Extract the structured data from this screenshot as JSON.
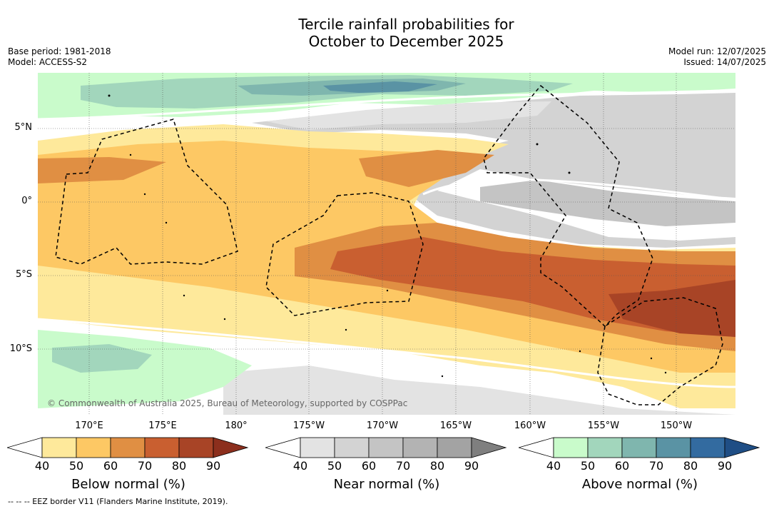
{
  "title_line1": "Tercile rainfall probabilities for",
  "title_line2": "October to December 2025",
  "meta_left": {
    "base_period": "Base period: 1981-2018",
    "model": "Model: ACCESS-S2"
  },
  "meta_right": {
    "model_run": "Model run: 12/07/2025",
    "issued": "Issued: 14/07/2025"
  },
  "map": {
    "lat_labels": [
      "5°N",
      "0°",
      "5°S",
      "10°S"
    ],
    "lon_labels": [
      "170°E",
      "175°E",
      "180°",
      "175°W",
      "170°W",
      "165°W",
      "160°W",
      "155°W",
      "150°W"
    ],
    "copyright": "© Commonwealth of Australia 2025, Bureau of Meteorology, supported by COSPPac",
    "colors": {
      "ocean_white": "#ffffff",
      "land": "#000000",
      "eez_border": "#000000"
    }
  },
  "colorbars": [
    {
      "title": "Below normal (%)",
      "ticks": [
        "40",
        "50",
        "60",
        "70",
        "80",
        "90"
      ],
      "colors": [
        "#ffffff",
        "#fee99b",
        "#fdc864",
        "#e08f43",
        "#c95f30",
        "#a84426",
        "#8c2f1d"
      ]
    },
    {
      "title": "Near normal (%)",
      "ticks": [
        "40",
        "50",
        "60",
        "70",
        "80",
        "90"
      ],
      "colors": [
        "#ffffff",
        "#e3e3e3",
        "#d3d3d3",
        "#c4c4c4",
        "#b3b3b3",
        "#a3a3a3",
        "#7f7f7f"
      ]
    },
    {
      "title": "Above normal (%)",
      "ticks": [
        "40",
        "50",
        "60",
        "70",
        "80",
        "90"
      ],
      "colors": [
        "#ffffff",
        "#c9fbcb",
        "#a2d6bc",
        "#7fb6ae",
        "#5a93a4",
        "#336ba0",
        "#1f4e85"
      ]
    }
  ],
  "eez_note": "-- -- -- EEZ border V11 (Flanders Marine Institute, 2019)."
}
